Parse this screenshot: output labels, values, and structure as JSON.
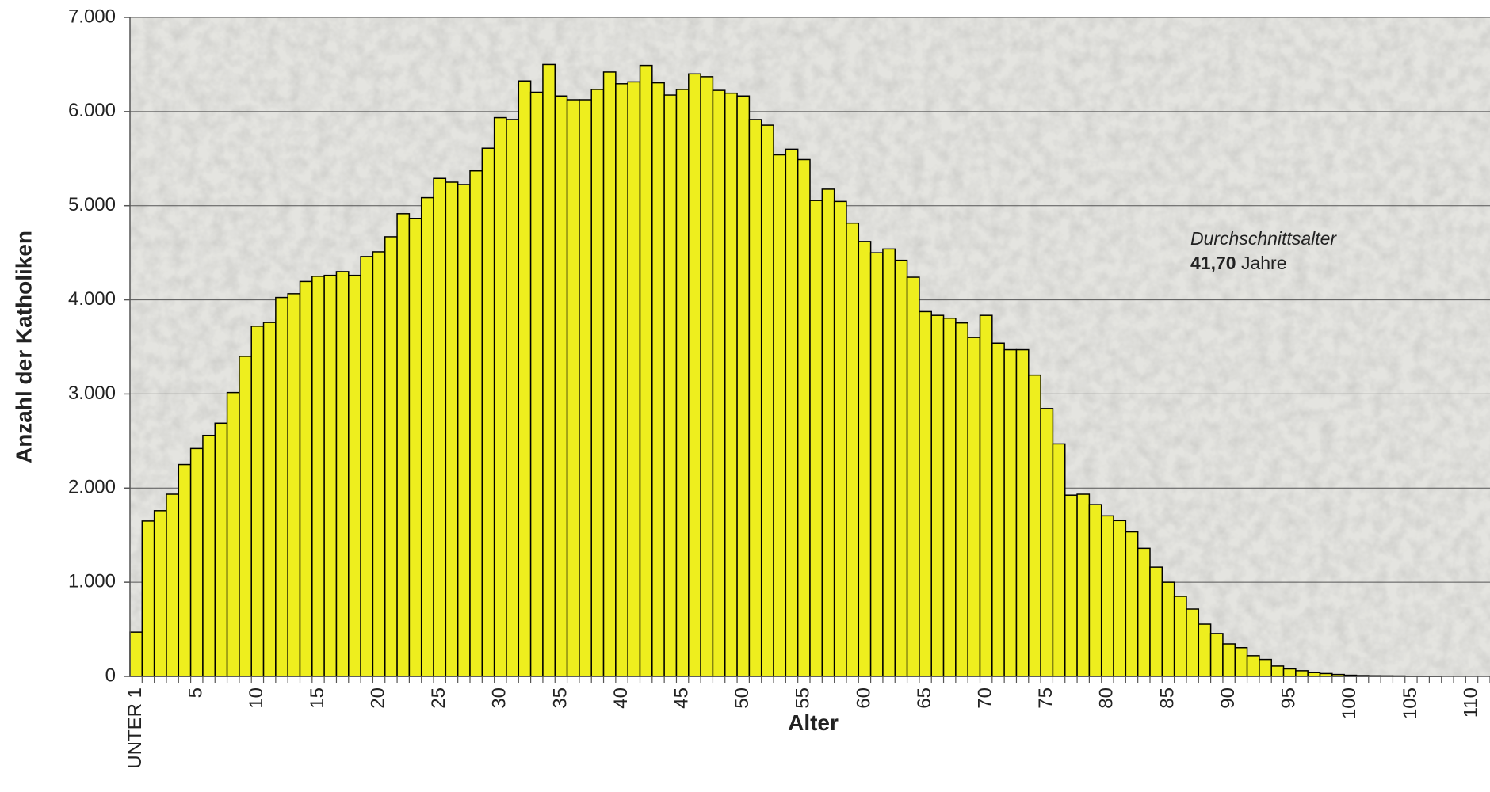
{
  "chart_data": {
    "type": "bar",
    "y_axis_label": "Anzahl der Katholiken",
    "x_axis_label": "Alter",
    "annotation": {
      "title": "Durchschnittsalter",
      "value": "41,70",
      "unit": "Jahre"
    },
    "color": "#eeee1e",
    "grid": true,
    "ylim": [
      0,
      7000
    ],
    "yticks": [
      0,
      {
        "value": 1000,
        "label": "1.000"
      },
      {
        "value": 2000,
        "label": "2.000"
      },
      {
        "value": 3000,
        "label": "3.000"
      },
      {
        "value": 4000,
        "label": "4.000"
      },
      {
        "value": 5000,
        "label": "5.000"
      },
      {
        "value": 6000,
        "label": "6.000"
      },
      {
        "value": 7000,
        "label": "7.000"
      }
    ],
    "categories": [
      "UNTER 1",
      null,
      null,
      null,
      null,
      "5",
      null,
      null,
      null,
      null,
      "10",
      null,
      null,
      null,
      null,
      "15",
      null,
      null,
      null,
      null,
      "20",
      null,
      null,
      null,
      null,
      "25",
      null,
      null,
      null,
      null,
      "30",
      null,
      null,
      null,
      null,
      "35",
      null,
      null,
      null,
      null,
      "40",
      null,
      null,
      null,
      null,
      "45",
      null,
      null,
      null,
      null,
      "50",
      null,
      null,
      null,
      null,
      "55",
      null,
      null,
      null,
      null,
      "60",
      null,
      null,
      null,
      null,
      "65",
      null,
      null,
      null,
      null,
      "70",
      null,
      null,
      null,
      null,
      "75",
      null,
      null,
      null,
      null,
      "80",
      null,
      null,
      null,
      null,
      "85",
      null,
      null,
      null,
      null,
      "90",
      null,
      null,
      null,
      null,
      "95",
      null,
      null,
      null,
      null,
      "100",
      null,
      null,
      null,
      null,
      "105",
      null,
      null,
      null,
      null,
      "110",
      null
    ],
    "values": [
      470,
      1650,
      1760,
      1935,
      2250,
      2420,
      2560,
      2690,
      3015,
      3400,
      3720,
      3760,
      4025,
      4065,
      4195,
      4250,
      4260,
      4300,
      4260,
      4460,
      4510,
      4670,
      4915,
      4865,
      5085,
      5290,
      5250,
      5225,
      5370,
      5610,
      5935,
      5915,
      6325,
      6205,
      6500,
      6165,
      6125,
      6125,
      6235,
      6420,
      6295,
      6315,
      6490,
      6305,
      6175,
      6235,
      6400,
      6370,
      6225,
      6195,
      6165,
      5915,
      5855,
      5540,
      5600,
      5490,
      5055,
      5175,
      5045,
      4815,
      4620,
      4500,
      4540,
      4420,
      4240,
      3875,
      3835,
      3805,
      3755,
      3600,
      3835,
      3540,
      3470,
      3470,
      3200,
      2845,
      2470,
      1925,
      1935,
      1825,
      1705,
      1655,
      1535,
      1360,
      1160,
      1000,
      850,
      715,
      555,
      455,
      345,
      305,
      220,
      180,
      110,
      80,
      60,
      40,
      30,
      20,
      12,
      8,
      6,
      5,
      4,
      2,
      1,
      1,
      0,
      0,
      0,
      0
    ]
  }
}
